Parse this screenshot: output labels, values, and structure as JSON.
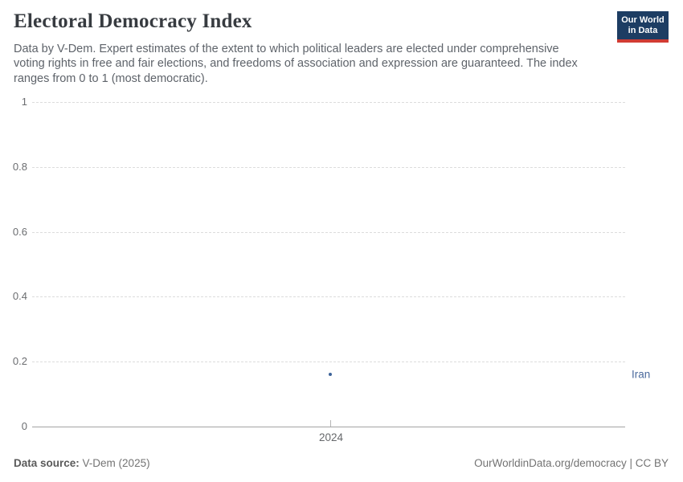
{
  "header": {
    "title": "Electoral Democracy Index",
    "subtitle_lines": [
      "Data by V-Dem. Expert estimates of the extent to which political leaders are elected under comprehensive",
      "voting rights in free and fair elections, and freedoms of association and expression are guaranteed. The index",
      "ranges from 0 to 1 (most democratic)."
    ],
    "logo": {
      "line1": "Our World",
      "line2": "in Data"
    }
  },
  "chart_data": {
    "type": "scatter",
    "title": "Electoral Democracy Index",
    "series": [
      {
        "name": "Iran",
        "points": [
          {
            "x": 2024,
            "y": 0.16
          }
        ],
        "color": "#3d6399",
        "label_color": "#4b6a9d"
      }
    ],
    "xlabel": "",
    "ylabel": "",
    "ylim": [
      0,
      1
    ],
    "yticks": [
      0,
      0.2,
      0.4,
      0.6,
      0.8,
      1
    ],
    "ytick_labels": [
      "0",
      "0.2",
      "0.4",
      "0.6",
      "0.8",
      "1"
    ],
    "xticks": [
      2024
    ],
    "xtick_labels": [
      "2024"
    ],
    "grid": "horizontal-dashed",
    "legend_position": "right-of-plot-entity-label"
  },
  "footer": {
    "source_label": "Data source:",
    "source_value": "V-Dem (2025)",
    "credit": "OurWorldinData.org/democracy | CC BY"
  },
  "colors": {
    "accent_blue": "#3d6399",
    "logo_navy": "#1d3d63",
    "logo_red": "#d13b33",
    "gridline": "#dcdcdc",
    "axis": "#a3a3a3"
  }
}
